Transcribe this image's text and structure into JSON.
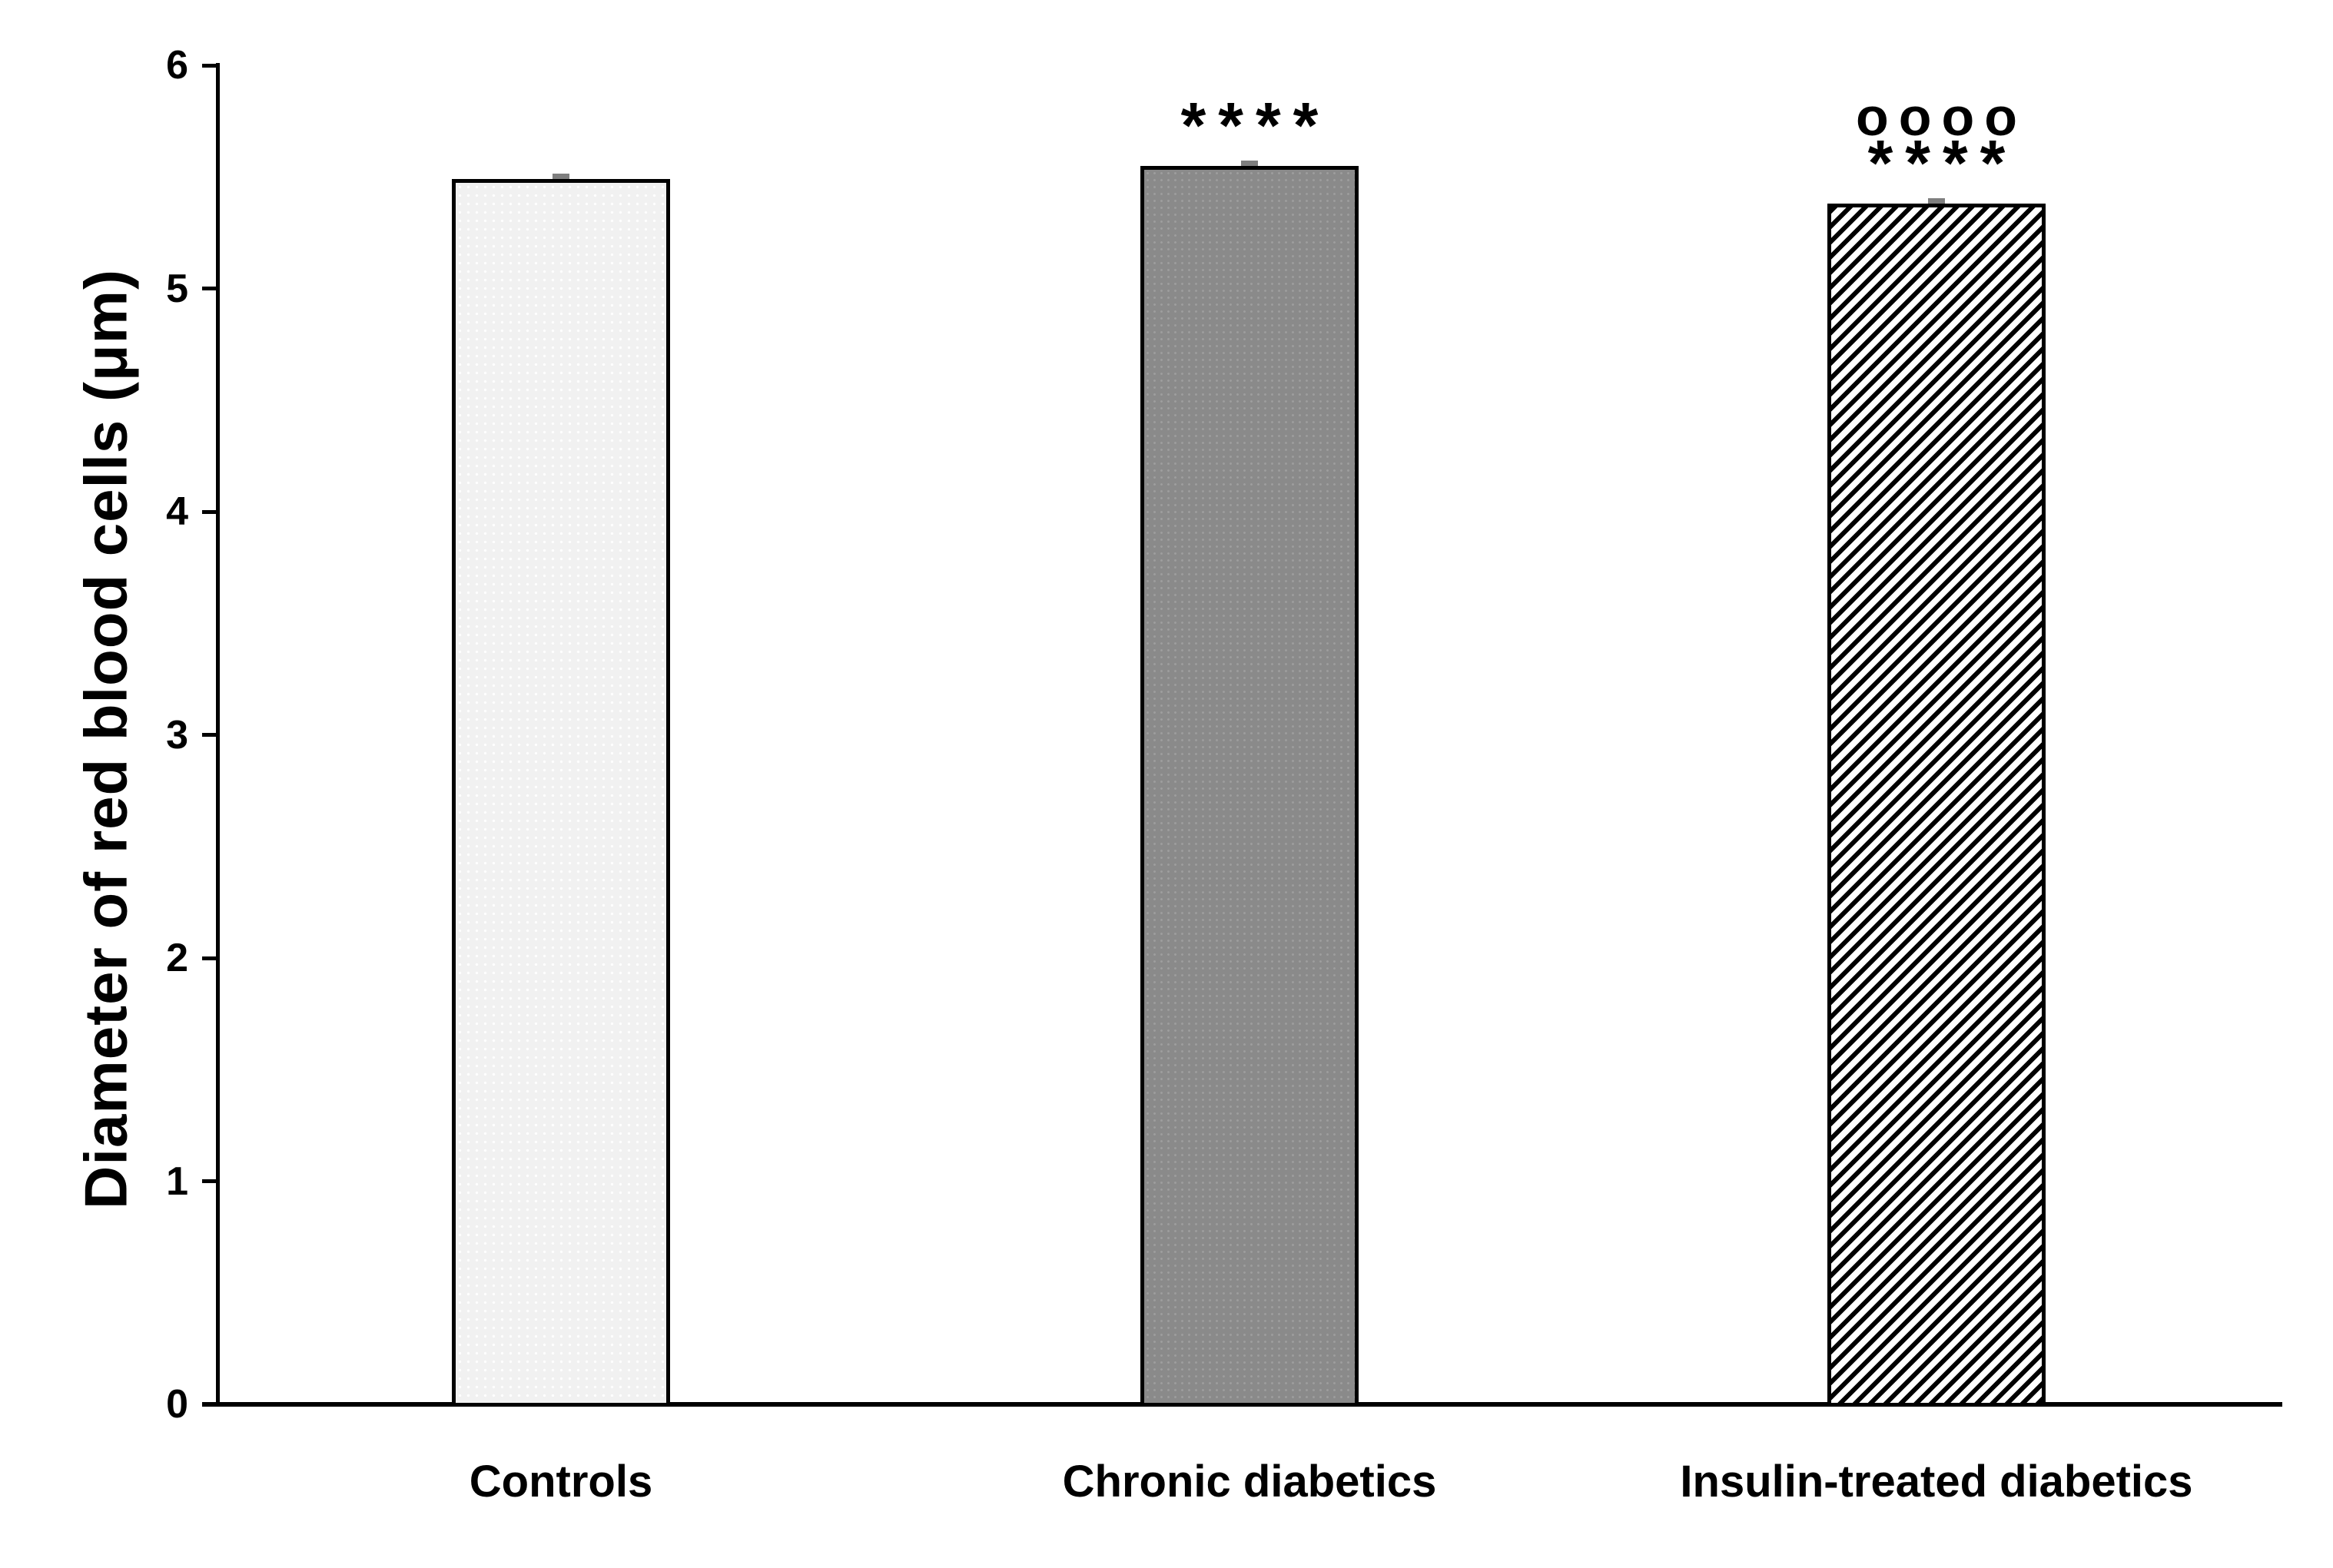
{
  "chart_data": {
    "type": "bar",
    "title": "",
    "xlabel": "",
    "ylabel": "Diameter of red blood cells (μm)",
    "ylim": [
      0,
      6
    ],
    "yticks": [
      0,
      1,
      2,
      3,
      4,
      5,
      6
    ],
    "grid": false,
    "legend": null,
    "categories": [
      "Controls",
      "Chronic diabetics",
      "Insulin-treated diabetics"
    ],
    "values": [
      5.49,
      5.55,
      5.38
    ],
    "error_caps": [
      0.02,
      0.02,
      0.02
    ],
    "bar_styles": [
      {
        "name": "light-dotted",
        "fill": "#f1f1f1",
        "border": "#000000",
        "css_class": "fill-dots-light"
      },
      {
        "name": "solid-gray-dotted",
        "fill": "#8a8a8a",
        "border": "#000000",
        "css_class": "fill-dots-gray"
      },
      {
        "name": "diagonal-hatch",
        "fill": "#ffffff",
        "hatch_color": "#000000",
        "border": "#000000",
        "css_class": "fill-hatch"
      }
    ],
    "annotations": [
      {
        "category": "Controls",
        "lines": []
      },
      {
        "category": "Chronic diabetics",
        "lines": [
          "****"
        ]
      },
      {
        "category": "Insulin-treated diabetics",
        "lines": [
          "oooo",
          "****"
        ]
      }
    ],
    "colors": {
      "axis": "#000000",
      "text": "#000000",
      "error_bar": "#7f7f7f",
      "background": "#ffffff"
    }
  }
}
